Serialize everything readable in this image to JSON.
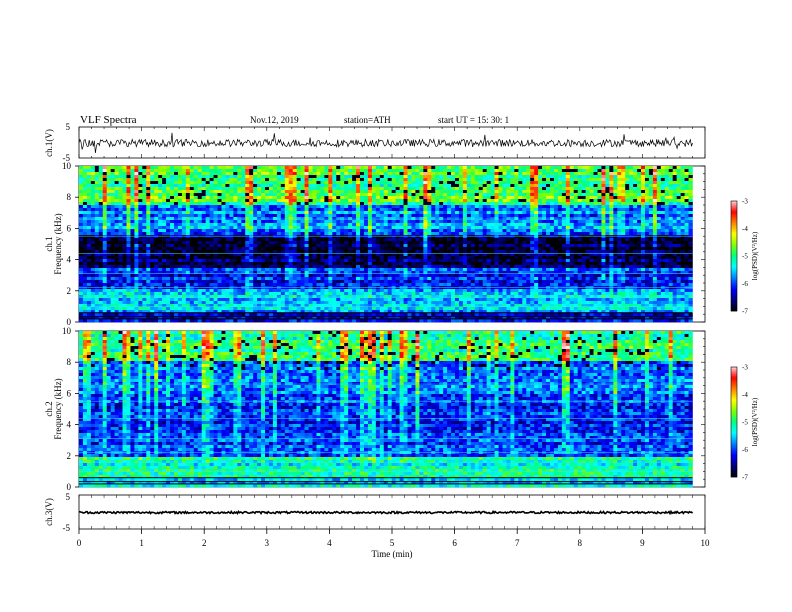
{
  "header": {
    "title": "VLF  Spectra",
    "date": "Nov.12, 2019",
    "station": "station=ATH",
    "start": "start  UT  =    15: 30: 1"
  },
  "colors": {
    "palette": [
      "#000000",
      "#000080",
      "#0000ff",
      "#0080ff",
      "#00ffff",
      "#00ff80",
      "#80ff00",
      "#ffff00",
      "#ff8000",
      "#ff0000",
      "#ffc0c0",
      "#ffffff"
    ]
  },
  "chart_data": [
    {
      "type": "line",
      "panel": "ch1-waveform",
      "ylabel": "ch.1(V)",
      "ylim": [
        -5,
        5
      ],
      "yticks": [
        "5",
        "-5"
      ],
      "xlim": [
        0,
        10
      ],
      "description_values": {
        "baseline": 0,
        "noise_amplitude": 1.2
      }
    },
    {
      "type": "heatmap",
      "panel": "ch1-spectrogram",
      "ylabel_top": "ch.1",
      "ylabel": "Frequency  (kHz)",
      "ylim": [
        0,
        10
      ],
      "yticks": [
        "0",
        "2",
        "4",
        "6",
        "8",
        "10"
      ],
      "xlim": [
        0,
        9.8
      ],
      "colorbar": {
        "label": "log(PSD)(V²/Hz)",
        "range": [
          -7,
          -3
        ],
        "ticks": [
          "-3",
          "-4",
          "-5",
          "-6",
          "-7"
        ]
      },
      "bands": [
        {
          "f_low": 0,
          "f_high": 0.6,
          "level": -6.3
        },
        {
          "f_low": 0.6,
          "f_high": 2.2,
          "level": -5.6
        },
        {
          "f_low": 2.2,
          "f_high": 3.5,
          "level": -6.2
        },
        {
          "f_low": 3.5,
          "f_high": 5.5,
          "level": -6.8
        },
        {
          "f_low": 5.5,
          "f_high": 7.5,
          "level": -5.8
        },
        {
          "f_low": 7.5,
          "f_high": 10,
          "level": -4.9
        }
      ]
    },
    {
      "type": "heatmap",
      "panel": "ch2-spectrogram",
      "ylabel_top": "ch.2",
      "ylabel": "Frequency  (kHz)",
      "ylim": [
        0,
        10
      ],
      "yticks": [
        "0",
        "2",
        "4",
        "6",
        "8",
        "10"
      ],
      "xlim": [
        0,
        9.8
      ],
      "colorbar": {
        "label": "log(PSD)(V²/Hz)",
        "range": [
          -7,
          -3
        ],
        "ticks": [
          "-3",
          "-4",
          "-5",
          "-6",
          "-7"
        ]
      },
      "bands": [
        {
          "f_low": 0,
          "f_high": 0.5,
          "level": -5.4
        },
        {
          "f_low": 0.5,
          "f_high": 2.0,
          "level": -5.3
        },
        {
          "f_low": 2.0,
          "f_high": 4.0,
          "level": -6.0
        },
        {
          "f_low": 4.0,
          "f_high": 6.0,
          "level": -6.0
        },
        {
          "f_low": 6.0,
          "f_high": 8.0,
          "level": -5.8
        },
        {
          "f_low": 8.0,
          "f_high": 10,
          "level": -5.1
        }
      ]
    },
    {
      "type": "line",
      "panel": "ch3-waveform",
      "ylabel": "ch.3(V)",
      "ylim": [
        -5,
        5
      ],
      "yticks": [
        "5",
        "-5"
      ],
      "xlim": [
        0,
        9.8
      ],
      "description_values": {
        "baseline": 0,
        "noise_amplitude": 0.3
      }
    }
  ],
  "xaxis": {
    "label": "Time  (min)",
    "ticks": [
      "0",
      "1",
      "2",
      "3",
      "4",
      "5",
      "6",
      "7",
      "8",
      "9",
      "10"
    ]
  }
}
